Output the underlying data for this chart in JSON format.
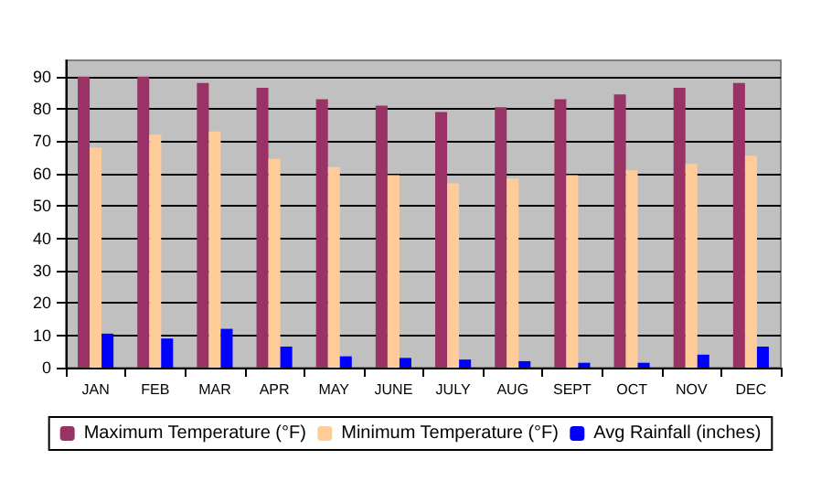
{
  "chart_data": {
    "type": "bar",
    "categories": [
      "JAN",
      "FEB",
      "MAR",
      "APR",
      "MAY",
      "JUNE",
      "JULY",
      "AUG",
      "SEPT",
      "OCT",
      "NOV",
      "DEC"
    ],
    "series": [
      {
        "name": "Maximum Temperature (°F)",
        "color": "#993366",
        "values": [
          90,
          90,
          88,
          86.5,
          83,
          81,
          79,
          80.5,
          83,
          84.5,
          86.5,
          88
        ]
      },
      {
        "name": "Minimum Temperature (°F)",
        "color": "#ffcc99",
        "values": [
          68,
          72,
          73,
          64.5,
          62,
          59.5,
          57,
          58.5,
          59.5,
          61,
          63,
          65.5
        ]
      },
      {
        "name": "Avg Rainfall (inches)",
        "color": "#0000ff",
        "values": [
          10.5,
          9,
          12,
          6.5,
          3.5,
          3,
          2.5,
          2,
          1.5,
          1.5,
          4,
          6.5
        ]
      }
    ],
    "ylim": [
      0,
      95
    ],
    "yticks": [
      0,
      10,
      20,
      30,
      40,
      50,
      60,
      70,
      80,
      90
    ],
    "grid": "y",
    "legend": "bottom"
  }
}
